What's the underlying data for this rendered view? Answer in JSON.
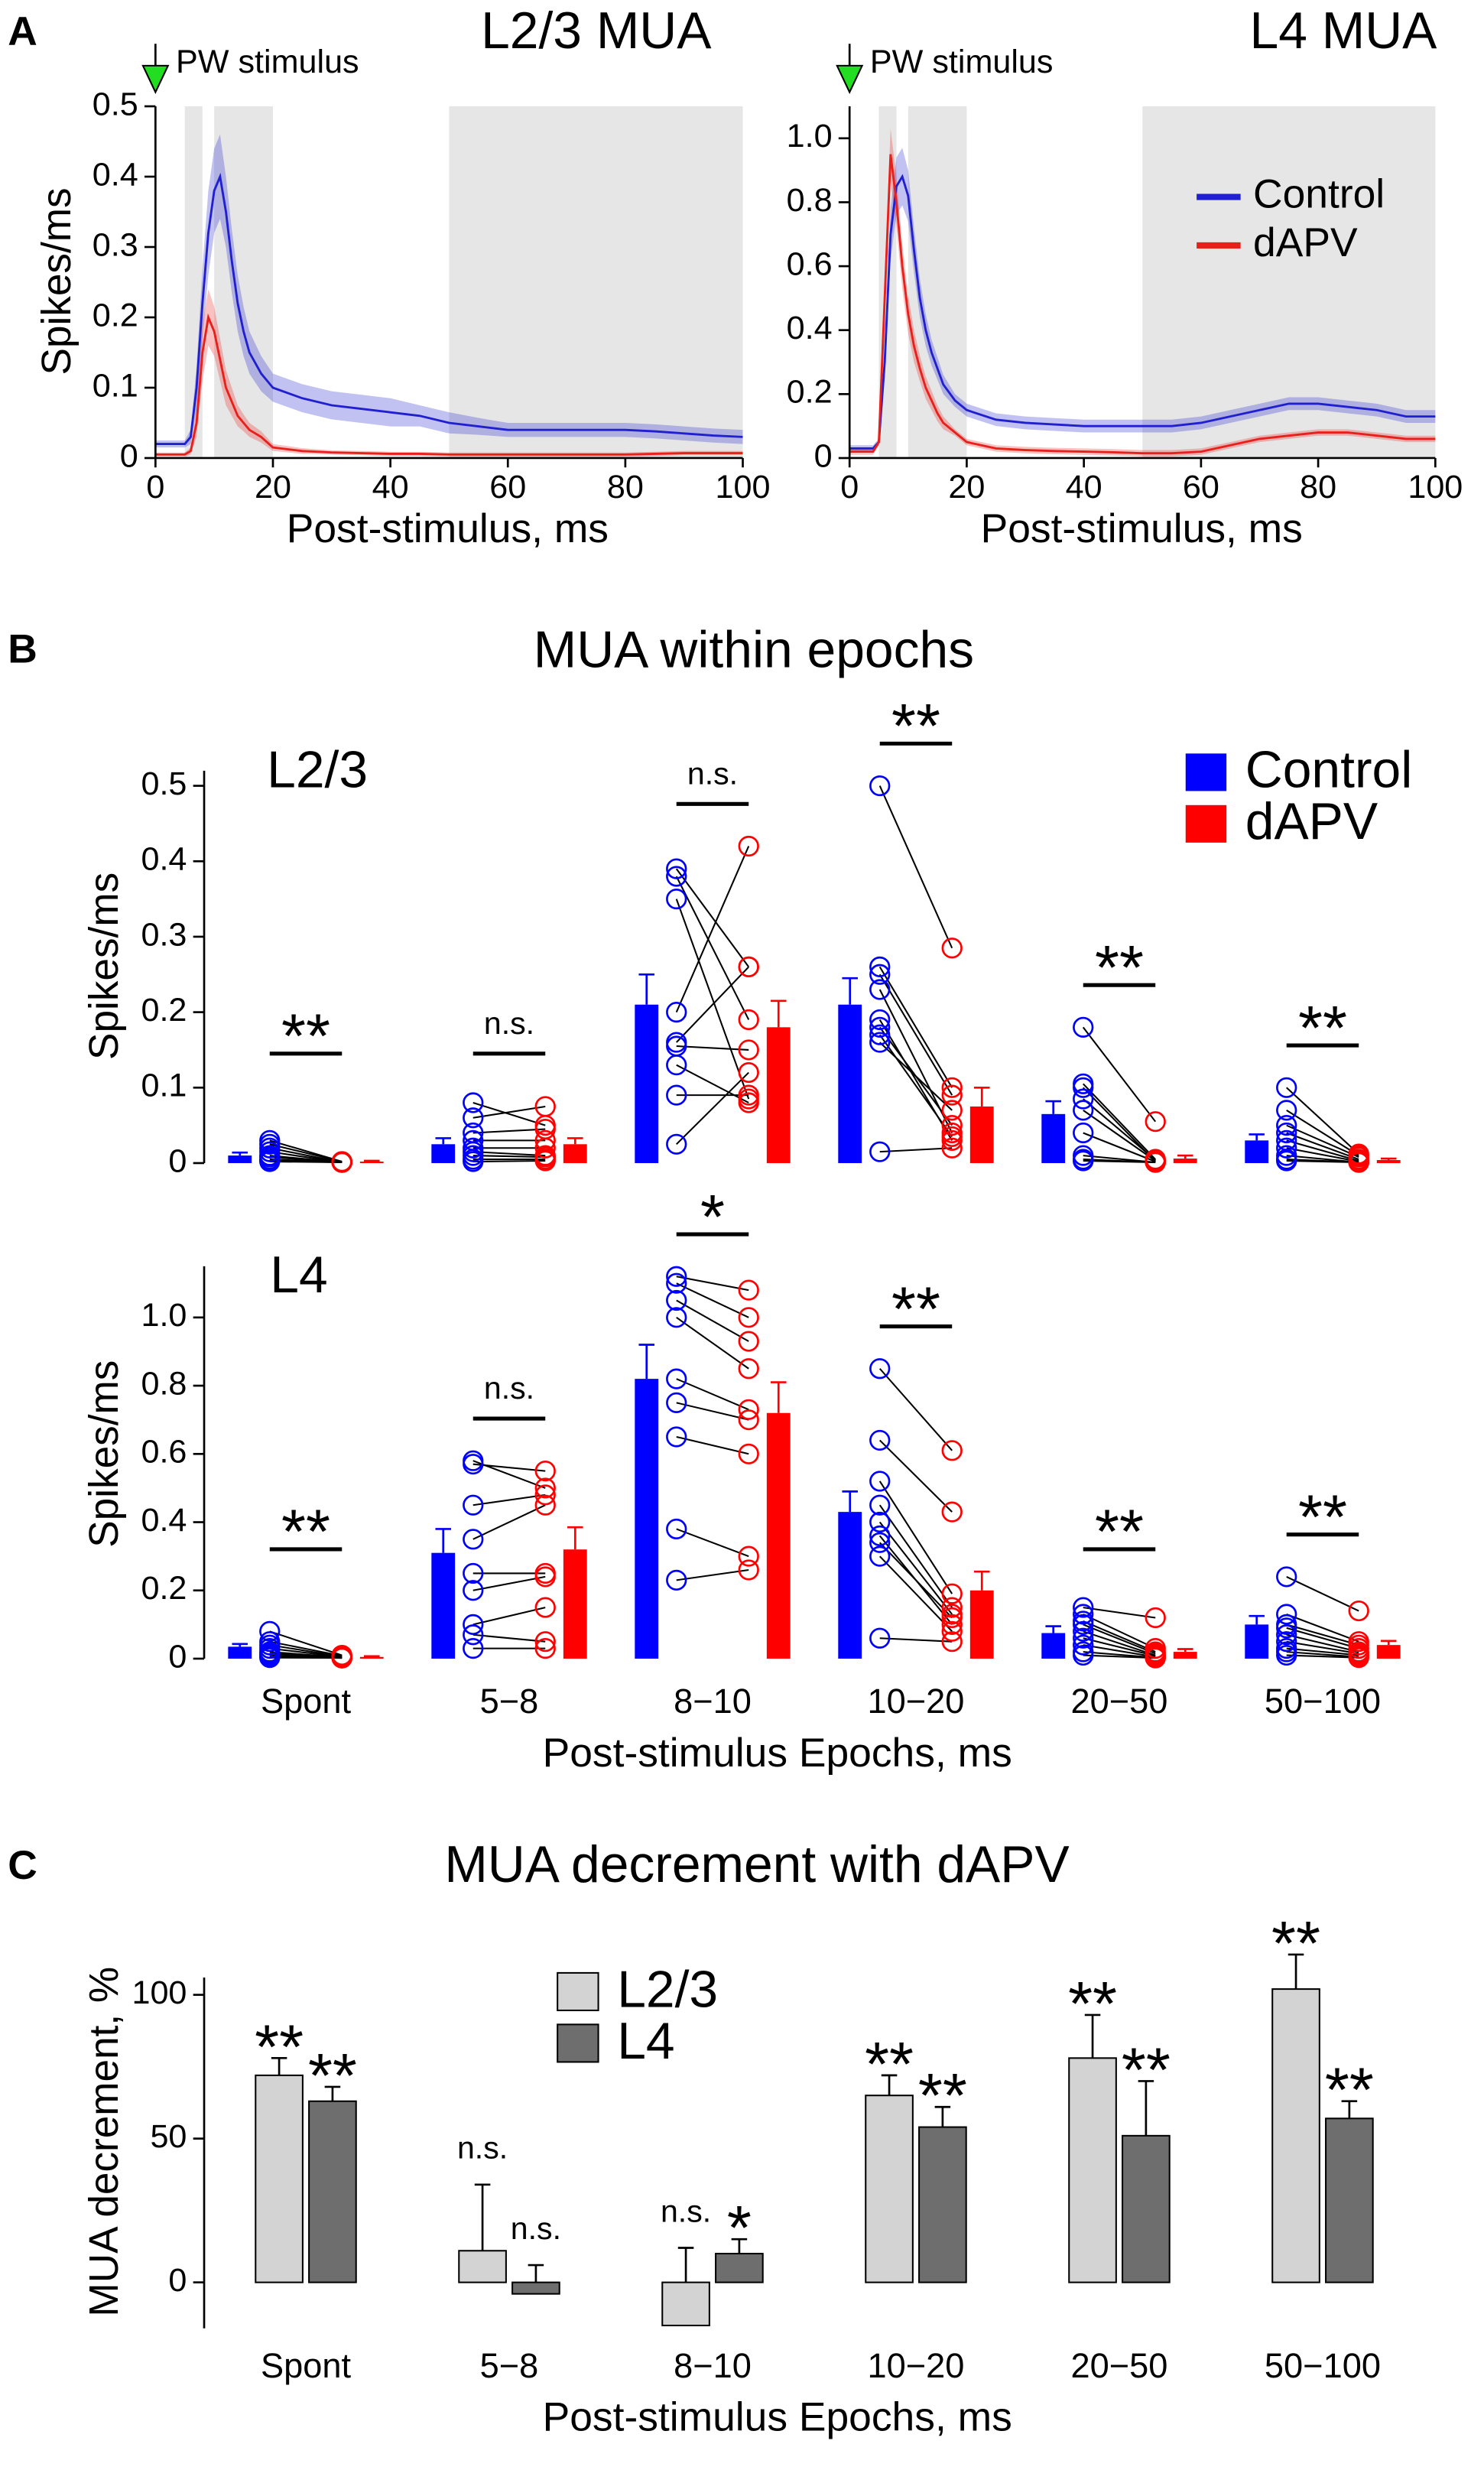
{
  "chart_data": [
    {
      "type": "line",
      "panel_label": "A",
      "title": "L2/3 MUA",
      "annotation": "PW stimulus",
      "x_label": "Post-stimulus, ms",
      "y_label": "Spikes/ms",
      "xlim": [
        0,
        100
      ],
      "xticks": [
        0,
        20,
        40,
        60,
        80,
        100
      ],
      "ylim": [
        0,
        0.5
      ],
      "yticks": [
        0,
        0.1,
        0.2,
        0.3,
        0.4,
        0.5
      ],
      "shaded_regions": [
        [
          5,
          8
        ],
        [
          10,
          20
        ],
        [
          50,
          100
        ]
      ],
      "shade_color": "#e6e6e6",
      "x": [
        0,
        2,
        4,
        5,
        6,
        7,
        8,
        9,
        10,
        11,
        12,
        13,
        14,
        15,
        16,
        18,
        20,
        25,
        30,
        35,
        40,
        45,
        50,
        55,
        60,
        65,
        70,
        75,
        80,
        85,
        90,
        95,
        100
      ],
      "series": [
        {
          "color": "#2020d0",
          "values": [
            0.02,
            0.02,
            0.02,
            0.02,
            0.03,
            0.1,
            0.22,
            0.32,
            0.38,
            0.4,
            0.35,
            0.28,
            0.22,
            0.18,
            0.15,
            0.12,
            0.1,
            0.085,
            0.075,
            0.07,
            0.065,
            0.06,
            0.05,
            0.045,
            0.04,
            0.04,
            0.04,
            0.04,
            0.04,
            0.038,
            0.035,
            0.032,
            0.03
          ],
          "band": [
            0.005,
            0.005,
            0.005,
            0.005,
            0.01,
            0.03,
            0.05,
            0.06,
            0.06,
            0.06,
            0.05,
            0.045,
            0.04,
            0.035,
            0.03,
            0.025,
            0.02,
            0.02,
            0.02,
            0.02,
            0.02,
            0.015,
            0.015,
            0.012,
            0.01,
            0.01,
            0.01,
            0.01,
            0.01,
            0.01,
            0.01,
            0.01,
            0.01
          ]
        },
        {
          "color": "#e8201c",
          "values": [
            0.005,
            0.005,
            0.005,
            0.005,
            0.01,
            0.05,
            0.15,
            0.2,
            0.18,
            0.14,
            0.1,
            0.08,
            0.06,
            0.05,
            0.04,
            0.03,
            0.015,
            0.01,
            0.008,
            0.007,
            0.006,
            0.006,
            0.005,
            0.005,
            0.005,
            0.005,
            0.005,
            0.005,
            0.005,
            0.006,
            0.007,
            0.007,
            0.007
          ],
          "band": [
            0.003,
            0.003,
            0.003,
            0.003,
            0.005,
            0.02,
            0.04,
            0.04,
            0.035,
            0.03,
            0.025,
            0.02,
            0.015,
            0.012,
            0.01,
            0.008,
            0.005,
            0.004,
            0.003,
            0.003,
            0.003,
            0.003,
            0.003,
            0.003,
            0.003,
            0.003,
            0.003,
            0.003,
            0.003,
            0.003,
            0.003,
            0.003,
            0.003
          ]
        }
      ]
    },
    {
      "type": "line",
      "title": "L4 MUA",
      "annotation": "PW stimulus",
      "x_label": "Post-stimulus, ms",
      "xlim": [
        0,
        100
      ],
      "xticks": [
        0,
        20,
        40,
        60,
        80,
        100
      ],
      "ylim": [
        0,
        1.1
      ],
      "yticks": [
        0,
        0.2,
        0.4,
        0.6,
        0.8,
        {
          "value": 1,
          "label": "1.0"
        }
      ],
      "shaded_regions": [
        [
          5,
          8
        ],
        [
          10,
          20
        ],
        [
          50,
          100
        ]
      ],
      "shade_color": "#e6e6e6",
      "legend": "upper right",
      "x": [
        0,
        2,
        4,
        5,
        6,
        7,
        8,
        9,
        10,
        11,
        12,
        13,
        14,
        15,
        16,
        18,
        20,
        25,
        30,
        35,
        40,
        45,
        50,
        55,
        60,
        65,
        70,
        75,
        80,
        85,
        90,
        95,
        100
      ],
      "series": [
        {
          "name": "Control",
          "color": "#2020d0",
          "values": [
            0.03,
            0.03,
            0.03,
            0.05,
            0.3,
            0.7,
            0.85,
            0.88,
            0.82,
            0.65,
            0.5,
            0.4,
            0.33,
            0.28,
            0.23,
            0.18,
            0.15,
            0.12,
            0.11,
            0.105,
            0.1,
            0.1,
            0.1,
            0.1,
            0.11,
            0.13,
            0.15,
            0.17,
            0.17,
            0.16,
            0.15,
            0.13,
            0.13
          ],
          "band": [
            0.01,
            0.01,
            0.01,
            0.01,
            0.05,
            0.08,
            0.09,
            0.09,
            0.08,
            0.07,
            0.06,
            0.05,
            0.04,
            0.035,
            0.03,
            0.02,
            0.02,
            0.02,
            0.02,
            0.02,
            0.02,
            0.02,
            0.02,
            0.02,
            0.02,
            0.02,
            0.02,
            0.02,
            0.02,
            0.02,
            0.02,
            0.02,
            0.02
          ]
        },
        {
          "name": "dAPV",
          "color": "#e8201c",
          "values": [
            0.02,
            0.02,
            0.02,
            0.05,
            0.5,
            0.95,
            0.8,
            0.6,
            0.45,
            0.35,
            0.28,
            0.22,
            0.18,
            0.14,
            0.11,
            0.08,
            0.05,
            0.03,
            0.025,
            0.022,
            0.02,
            0.018,
            0.015,
            0.015,
            0.02,
            0.04,
            0.06,
            0.07,
            0.08,
            0.08,
            0.07,
            0.06,
            0.06
          ],
          "band": [
            0.01,
            0.01,
            0.01,
            0.01,
            0.06,
            0.08,
            0.08,
            0.07,
            0.06,
            0.05,
            0.04,
            0.035,
            0.03,
            0.025,
            0.02,
            0.01,
            0.01,
            0.01,
            0.01,
            0.01,
            0.01,
            0.01,
            0.01,
            0.01,
            0.01,
            0.01,
            0.01,
            0.01,
            0.01,
            0.01,
            0.01,
            0.01,
            0.01
          ]
        }
      ]
    },
    {
      "type": "bar",
      "panel_label": "B",
      "title": "MUA within epochs",
      "label": "L2/3",
      "y_label": "Spikes/ms",
      "ylim": [
        0,
        0.52
      ],
      "yticks": [
        0,
        0.1,
        0.2,
        0.3,
        0.4,
        0.5
      ],
      "legend": "upper right",
      "significance": [
        "**",
        "n.s.",
        "n.s.",
        "**",
        "**",
        "**"
      ],
      "series": [
        {
          "name": "Control",
          "color": "#0000ff",
          "values": [
            0.01,
            0.025,
            0.21,
            0.21,
            0.065,
            0.03
          ],
          "errors": [
            0.004,
            0.008,
            0.04,
            0.035,
            0.017,
            0.008
          ],
          "points": [
            [
              0.03,
              0.025,
              0.02,
              0.015,
              0.01,
              0.008,
              0.005,
              0.003,
              0.002
            ],
            [
              0.08,
              0.06,
              0.04,
              0.03,
              0.02,
              0.015,
              0.01,
              0.005,
              0.002
            ],
            [
              0.39,
              0.38,
              0.35,
              0.2,
              0.16,
              0.155,
              0.13,
              0.09,
              0.025
            ],
            [
              0.5,
              0.26,
              0.25,
              0.23,
              0.19,
              0.18,
              0.17,
              0.16,
              0.015
            ],
            [
              0.18,
              0.105,
              0.1,
              0.085,
              0.07,
              0.04,
              0.01,
              0.005,
              0.003
            ],
            [
              0.1,
              0.07,
              0.05,
              0.04,
              0.03,
              0.02,
              0.01,
              0.005,
              0.003
            ]
          ]
        },
        {
          "name": "dAPV",
          "color": "#ff0000",
          "values": [
            0.002,
            0.025,
            0.18,
            0.075,
            0.006,
            0.004
          ],
          "errors": [
            0.001,
            0.008,
            0.035,
            0.025,
            0.004,
            0.002
          ],
          "points": [
            [
              0.002,
              0.002,
              0.001,
              0.001,
              0.001,
              0.001,
              0.001,
              0.001,
              0.001
            ],
            [
              0.05,
              0.075,
              0.045,
              0.03,
              0.02,
              0.01,
              0.008,
              0.005,
              0.003
            ],
            [
              0.26,
              0.19,
              0.085,
              0.42,
              0.26,
              0.15,
              0.08,
              0.09,
              0.12
            ],
            [
              0.285,
              0.1,
              0.09,
              0.04,
              0.03,
              0.05,
              0.035,
              0.07,
              0.02
            ],
            [
              0.055,
              0.005,
              0.002,
              0.004,
              0.003,
              0.002,
              0.001,
              0.001,
              0.001
            ],
            [
              0.012,
              0.01,
              0.008,
              0.005,
              0.003,
              0.002,
              0.001,
              0.001,
              0.001
            ]
          ]
        }
      ]
    },
    {
      "type": "bar",
      "label": "L4",
      "y_label": "Spikes/ms",
      "x_label": "Post-stimulus Epochs, ms",
      "categories": [
        "Spont",
        "5−8",
        "8−10",
        "10−20",
        "20−50",
        "50−100"
      ],
      "ylim": [
        0,
        1.15
      ],
      "yticks": [
        0,
        0.2,
        0.4,
        0.6,
        0.8,
        {
          "value": 1,
          "label": "1.0"
        }
      ],
      "significance": [
        "**",
        "n.s.",
        "*",
        "**",
        "**",
        "**"
      ],
      "series": [
        {
          "color": "#0000ff",
          "values": [
            0.035,
            0.31,
            0.82,
            0.43,
            0.075,
            0.1
          ],
          "errors": [
            0.008,
            0.07,
            0.1,
            0.06,
            0.02,
            0.025
          ],
          "points": [
            [
              0.08,
              0.05,
              0.04,
              0.03,
              0.02,
              0.015,
              0.01,
              0.005,
              0.003
            ],
            [
              0.58,
              0.57,
              0.45,
              0.35,
              0.25,
              0.2,
              0.1,
              0.07,
              0.03
            ],
            [
              1.12,
              1.1,
              1.05,
              1.0,
              0.82,
              0.75,
              0.65,
              0.38,
              0.23
            ],
            [
              0.85,
              0.64,
              0.52,
              0.45,
              0.4,
              0.36,
              0.34,
              0.3,
              0.06
            ],
            [
              0.15,
              0.13,
              0.11,
              0.1,
              0.08,
              0.06,
              0.04,
              0.02,
              0.01
            ],
            [
              0.24,
              0.13,
              0.1,
              0.09,
              0.07,
              0.05,
              0.03,
              0.02,
              0.01
            ]
          ]
        },
        {
          "color": "#ff0000",
          "values": [
            0.005,
            0.32,
            0.72,
            0.2,
            0.02,
            0.04
          ],
          "errors": [
            0.002,
            0.065,
            0.09,
            0.055,
            0.008,
            0.012
          ],
          "points": [
            [
              0.01,
              0.008,
              0.006,
              0.005,
              0.004,
              0.003,
              0.002,
              0.002,
              0.002
            ],
            [
              0.5,
              0.55,
              0.48,
              0.45,
              0.25,
              0.24,
              0.15,
              0.05,
              0.03
            ],
            [
              1.08,
              1.0,
              0.93,
              0.85,
              0.73,
              0.7,
              0.6,
              0.3,
              0.26
            ],
            [
              0.61,
              0.43,
              0.19,
              0.15,
              0.13,
              0.1,
              0.12,
              0.08,
              0.05
            ],
            [
              0.12,
              0.03,
              0.02,
              0.015,
              0.01,
              0.008,
              0.005,
              0.003,
              0.002
            ],
            [
              0.14,
              0.05,
              0.04,
              0.03,
              0.02,
              0.015,
              0.01,
              0.005,
              0.003
            ]
          ]
        }
      ]
    },
    {
      "type": "bar",
      "panel_label": "C",
      "title": "MUA decrement with dAPV",
      "y_label": "MUA decrement, %",
      "x_label": "Post-stimulus Epochs, ms",
      "categories": [
        "Spont",
        "5−8",
        "8−10",
        "10−20",
        "20−50",
        "50−100"
      ],
      "ylim": [
        -16,
        106
      ],
      "yticks": [
        0,
        50,
        100
      ],
      "legend": "upper center",
      "series": [
        {
          "name": "L2/3",
          "color": "#d3d3d3",
          "values": [
            72,
            11,
            -15,
            65,
            78,
            102
          ],
          "errors": [
            6,
            23,
            27,
            7,
            15,
            12
          ],
          "significance": [
            "**",
            "n.s.",
            "n.s.",
            "**",
            "**",
            "**"
          ]
        },
        {
          "name": "L4",
          "color": "#6e6e6e",
          "values": [
            63,
            -4,
            10,
            54,
            51,
            57
          ],
          "errors": [
            5,
            10,
            5,
            7,
            19,
            6
          ],
          "significance": [
            "**",
            "n.s.",
            "*",
            "**",
            "**",
            "**"
          ]
        }
      ]
    }
  ]
}
